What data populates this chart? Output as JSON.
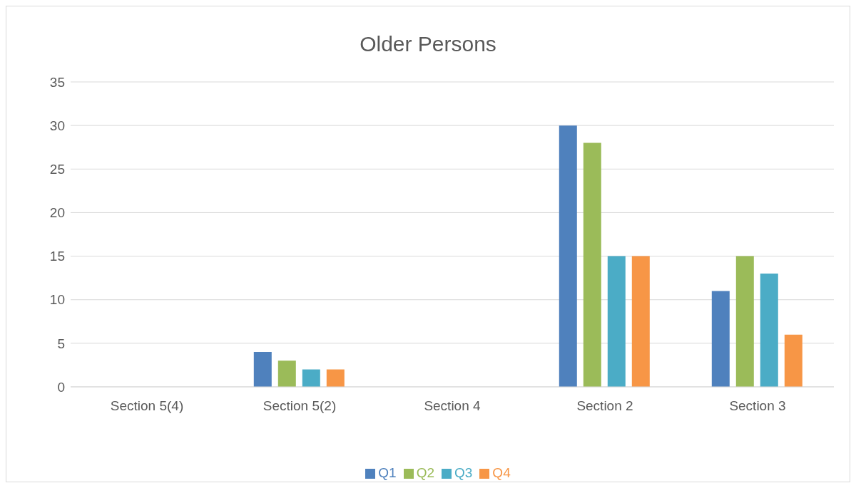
{
  "chart_data": {
    "type": "bar",
    "title": "Older Persons",
    "categories": [
      "Section 5(4)",
      "Section 5(2)",
      "Section 4",
      "Section 2",
      "Section 3"
    ],
    "series": [
      {
        "name": "Q1",
        "color": "#4f81bd",
        "values": [
          0,
          4,
          0,
          30,
          11
        ]
      },
      {
        "name": "Q2",
        "color": "#9bbb59",
        "values": [
          0,
          3,
          0,
          28,
          15
        ]
      },
      {
        "name": "Q3",
        "color": "#4bacc6",
        "values": [
          0,
          2,
          0,
          15,
          13
        ]
      },
      {
        "name": "Q4",
        "color": "#f79646",
        "values": [
          0,
          2,
          0,
          15,
          6
        ]
      }
    ],
    "ylim": [
      0,
      35
    ],
    "yticks": [
      0,
      5,
      10,
      15,
      20,
      25,
      30,
      35
    ],
    "grid": "y",
    "legend": "bottom"
  }
}
